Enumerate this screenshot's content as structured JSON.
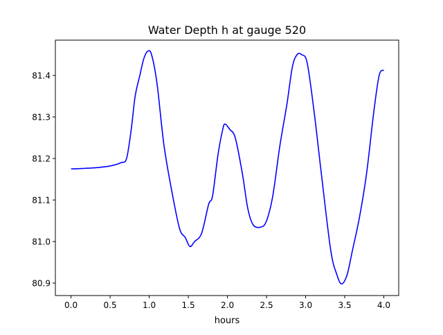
{
  "chart_data": {
    "type": "line",
    "title": "Water Depth h at gauge 520",
    "xlabel": "hours",
    "ylabel": "",
    "xlim": [
      -0.2,
      4.19
    ],
    "ylim": [
      80.87,
      81.485
    ],
    "xticks": [
      0.0,
      0.5,
      1.0,
      1.5,
      2.0,
      2.5,
      3.0,
      3.5,
      4.0
    ],
    "xtick_labels": [
      "0.0",
      "0.5",
      "1.0",
      "1.5",
      "2.0",
      "2.5",
      "3.0",
      "3.5",
      "4.0"
    ],
    "yticks": [
      80.9,
      81.0,
      81.1,
      81.2,
      81.3,
      81.4
    ],
    "ytick_labels": [
      "80.9",
      "81.0",
      "81.1",
      "81.2",
      "81.3",
      "81.4"
    ],
    "grid": false,
    "series": [
      {
        "name": "h",
        "color": "#0000ff",
        "x": [
          0,
          0.15,
          0.33,
          0.5,
          0.64,
          0.71,
          0.77,
          0.82,
          0.88,
          0.93,
          0.98,
          1.03,
          1.1,
          1.19,
          1.3,
          1.39,
          1.46,
          1.52,
          1.58,
          1.67,
          1.76,
          1.81,
          1.88,
          1.94,
          1.97,
          2.03,
          2.1,
          2.19,
          2.26,
          2.33,
          2.43,
          2.5,
          2.58,
          2.67,
          2.76,
          2.83,
          2.89,
          2.95,
          3.02,
          3.11,
          3.2,
          3.32,
          3.4,
          3.46,
          3.53,
          3.6,
          3.69,
          3.78,
          3.87,
          3.94,
          4.0
        ],
        "y": [
          81.175,
          81.176,
          81.178,
          81.182,
          81.19,
          81.2,
          81.27,
          81.35,
          81.4,
          81.44,
          81.458,
          81.45,
          81.38,
          81.23,
          81.11,
          81.03,
          81.01,
          80.988,
          81.0,
          81.02,
          81.09,
          81.11,
          81.21,
          81.27,
          81.283,
          81.27,
          81.25,
          81.165,
          81.08,
          81.04,
          81.035,
          81.05,
          81.11,
          81.23,
          81.33,
          81.42,
          81.45,
          81.45,
          81.43,
          81.31,
          81.165,
          80.98,
          80.92,
          80.898,
          80.92,
          80.98,
          81.06,
          81.165,
          81.31,
          81.4,
          81.413
        ]
      }
    ]
  }
}
